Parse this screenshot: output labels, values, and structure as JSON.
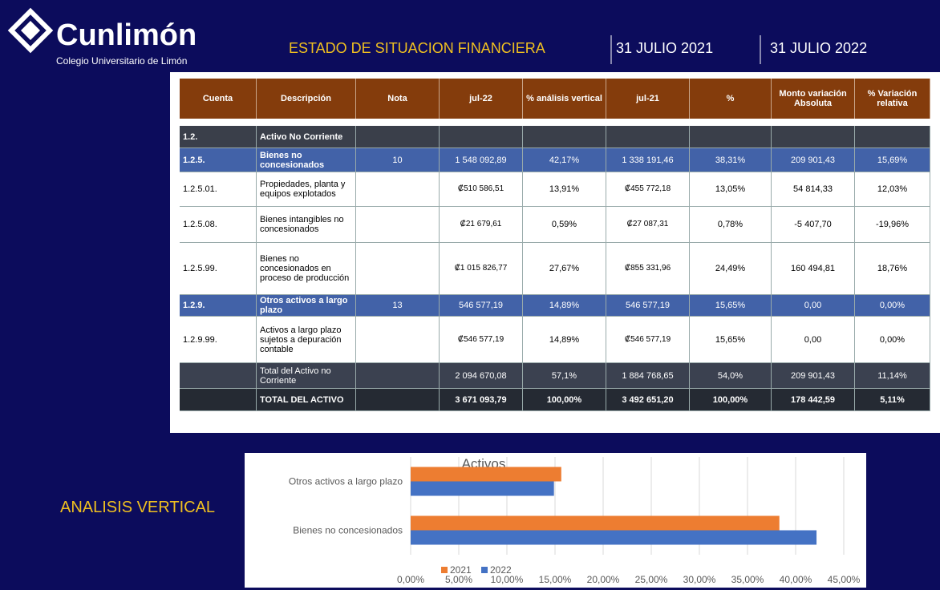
{
  "header": {
    "logo": "Cunlimón",
    "subtitle": "Colegio Universitario de Limón",
    "title": "ESTADO DE SITUACION FINANCIERA",
    "date_1": "31 JULIO 2021",
    "date_2": "31 JULIO 2022"
  },
  "table": {
    "columns": [
      "Cuenta",
      "Descripción",
      "Nota",
      "jul-22",
      "% análisis vertical",
      "jul-21",
      "%",
      "Monto variación Absoluta",
      "% Variación relativa"
    ],
    "rows": [
      [
        "1.2.",
        "Activo No Corriente",
        null,
        null,
        null,
        null,
        null,
        null,
        null
      ],
      [
        "1.2.5.",
        "Bienes no concesionados",
        "10",
        "1 548 092,89",
        "42,17%",
        "1 338 191,46",
        "38,31%",
        "209 901,43",
        "15,69%"
      ],
      [
        "1.2.5.01.",
        "Propiedades, planta y equipos explotados",
        null,
        "₡510 586,51",
        "13,91%",
        "₡455 772,18",
        "13,05%",
        "54 814,33",
        "12,03%"
      ],
      [
        "1.2.5.08.",
        "Bienes intangibles no concesionados",
        null,
        "₡21 679,61",
        "0,59%",
        "₡27 087,31",
        "0,78%",
        "-5 407,70",
        "-19,96%"
      ],
      [
        "1.2.5.99.",
        "Bienes no concesionados en proceso de producción",
        null,
        "₡1 015 826,77",
        "27,67%",
        "₡855 331,96",
        "24,49%",
        "160 494,81",
        "18,76%"
      ],
      [
        "1.2.9.",
        "Otros activos a largo plazo",
        "13",
        "546 577,19",
        "14,89%",
        "546 577,19",
        "15,65%",
        "0,00",
        "0,00%"
      ],
      [
        "1.2.9.99.",
        "Activos a largo plazo sujetos a depuración contable",
        null,
        "₡546 577,19",
        "14,89%",
        "₡546 577,19",
        "15,65%",
        "0,00",
        "0,00%"
      ],
      [
        null,
        "Total del Activo no Corriente",
        null,
        "2 094 670,08",
        "57,1%",
        "1 884 768,65",
        "54,0%",
        "209 901,43",
        "11,14%"
      ],
      [
        null,
        "TOTAL DEL ACTIVO",
        null,
        "3 671 093,79",
        "100,00%",
        "3 492 651,20",
        "100,00%",
        "178 442,59",
        "5,11%"
      ]
    ]
  },
  "section_label": "ANALISIS VERTICAL",
  "chart_data": {
    "type": "bar",
    "orientation": "horizontal",
    "title": "Activos",
    "categories": [
      "Otros activos a largo plazo",
      "Bienes no concesionados"
    ],
    "series": [
      {
        "name": "2021",
        "color": "#ed7d31",
        "values": [
          15.65,
          38.31
        ]
      },
      {
        "name": "2022",
        "color": "#4472c4",
        "values": [
          14.89,
          42.17
        ]
      }
    ],
    "xlim": [
      0,
      45
    ],
    "xticks": [
      {
        "value": 0,
        "label": "0,00%"
      },
      {
        "value": 5,
        "label": "5,00%"
      },
      {
        "value": 10,
        "label": "10,00%"
      },
      {
        "value": 15,
        "label": "15,00%"
      },
      {
        "value": 20,
        "label": "20,00%"
      },
      {
        "value": 25,
        "label": "25,00%"
      },
      {
        "value": 30,
        "label": "30,00%"
      },
      {
        "value": 35,
        "label": "35,00%"
      },
      {
        "value": 40,
        "label": "40,00%"
      },
      {
        "value": 45,
        "label": "45,00%"
      }
    ],
    "grid": true,
    "legend": "bottom"
  }
}
